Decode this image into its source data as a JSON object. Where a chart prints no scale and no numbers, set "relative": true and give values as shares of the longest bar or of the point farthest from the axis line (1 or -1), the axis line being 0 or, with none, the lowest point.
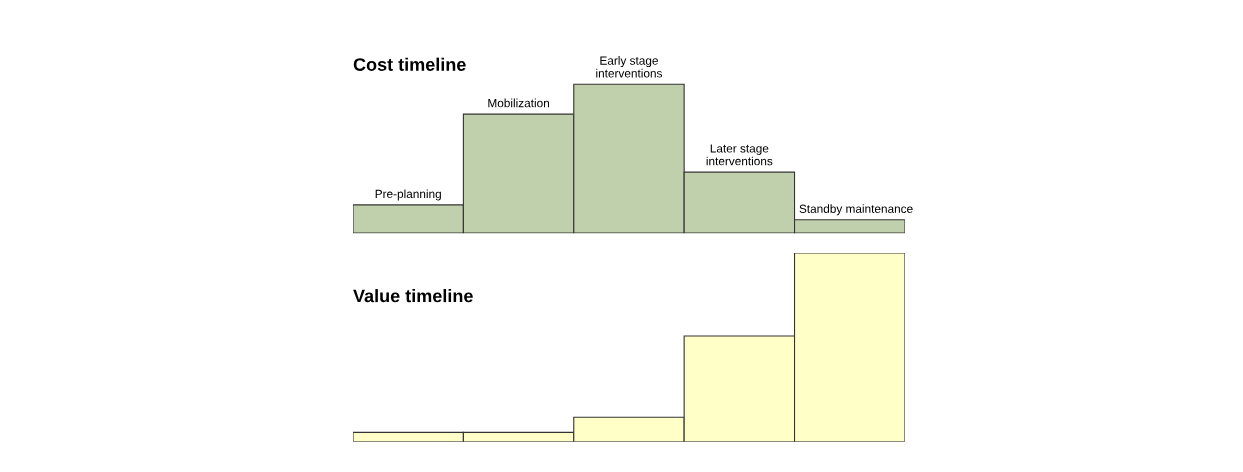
{
  "chart_data": [
    {
      "type": "bar",
      "title": "Cost timeline",
      "categories": [
        "Pre-planning",
        "Mobilization",
        "Early stage\ninterventions",
        "Later stage\ninterventions",
        "Standby maintenance"
      ],
      "values": [
        0.19,
        0.8,
        1,
        0.41,
        0.09
      ],
      "color": "#c0d0ac",
      "relative": true
    },
    {
      "type": "bar",
      "title": "Value timeline",
      "categories": [
        null,
        null,
        null,
        null,
        null
      ],
      "values": [
        0.05,
        0.05,
        0.13,
        0.56,
        1
      ],
      "color": "#ffffc8",
      "relative": true
    }
  ]
}
